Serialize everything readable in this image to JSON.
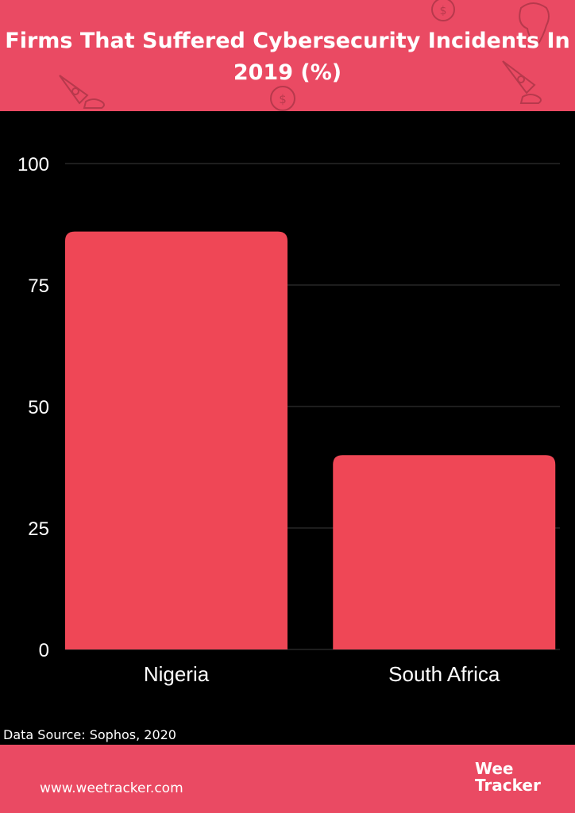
{
  "header": {
    "title": "Firms That Suffered Cybersecurity Incidents In 2019 (%)",
    "background_color": "#ea4a63"
  },
  "chart_data": {
    "type": "bar",
    "title": "Firms That Suffered Cybersecurity Incidents In 2019 (%)",
    "categories": [
      "Nigeria",
      "South Africa"
    ],
    "values": [
      86,
      40
    ],
    "yticks": [
      "0",
      "25",
      "50",
      "75",
      "100"
    ],
    "ylim": [
      0,
      100
    ],
    "xlabel": "",
    "ylabel": "",
    "grid": true,
    "bar_color": "#ef4756",
    "background": "#000000"
  },
  "source": "Data Source: Sophos, 2020",
  "footer": {
    "url": "www.weetracker.com",
    "logo_line1": "Wee",
    "logo_line2": "Tracker"
  }
}
